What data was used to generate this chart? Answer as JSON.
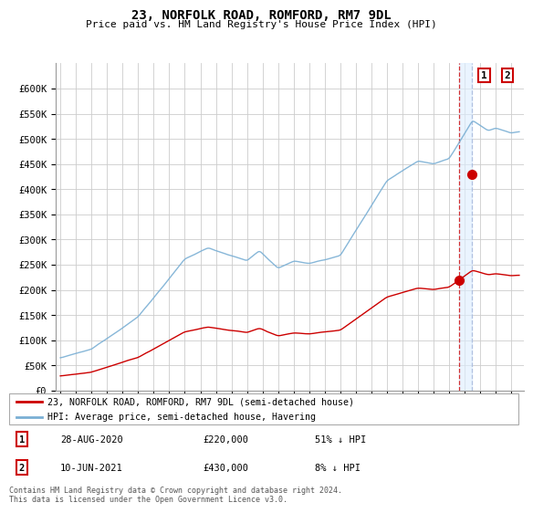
{
  "title": "23, NORFOLK ROAD, ROMFORD, RM7 9DL",
  "subtitle": "Price paid vs. HM Land Registry's House Price Index (HPI)",
  "legend_line1": "23, NORFOLK ROAD, ROMFORD, RM7 9DL (semi-detached house)",
  "legend_line2": "HPI: Average price, semi-detached house, Havering",
  "footer": "Contains HM Land Registry data © Crown copyright and database right 2024.\nThis data is licensed under the Open Government Licence v3.0.",
  "transaction1_date": "28-AUG-2020",
  "transaction1_price": "£220,000",
  "transaction1_hpi": "51% ↓ HPI",
  "transaction2_date": "10-JUN-2021",
  "transaction2_price": "£430,000",
  "transaction2_hpi": "8% ↓ HPI",
  "hpi_color": "#7aafd4",
  "price_color": "#cc0000",
  "marker_color": "#cc0000",
  "dashed_line_color": "#cc0000",
  "dashed_line2_color": "#aabbdd",
  "highlight_color": "#ddeeff",
  "ylim": [
    0,
    650000
  ],
  "yticks": [
    0,
    50000,
    100000,
    150000,
    200000,
    250000,
    300000,
    350000,
    400000,
    450000,
    500000,
    550000,
    600000
  ],
  "background_color": "#ffffff",
  "grid_color": "#cccccc",
  "transaction1_x": 2020.66,
  "transaction1_y": 220000,
  "transaction2_x": 2021.44,
  "transaction2_y": 430000,
  "xmin": 1995,
  "xmax": 2024
}
